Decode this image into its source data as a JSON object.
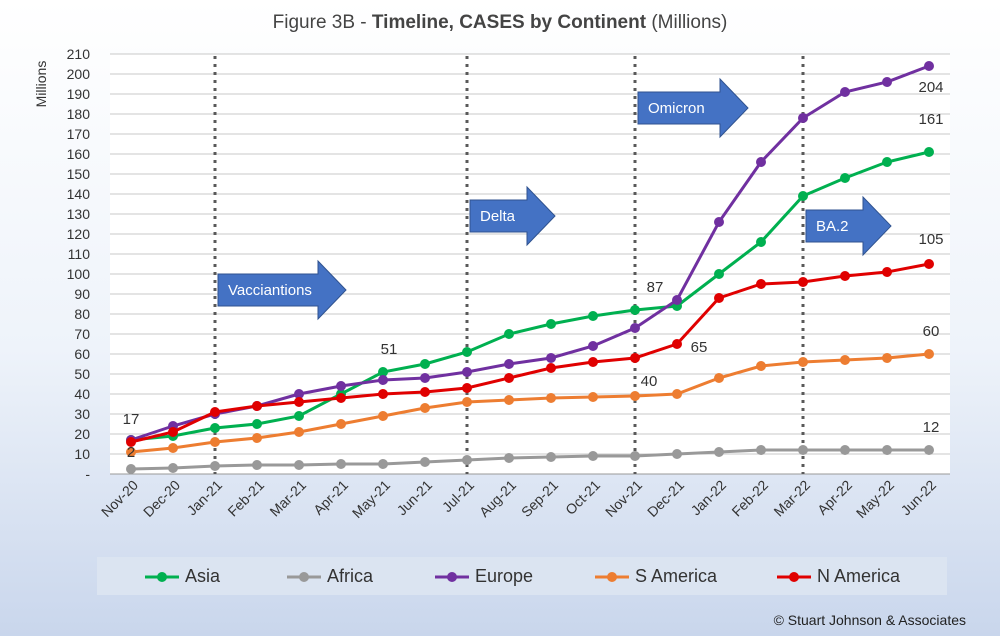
{
  "title": {
    "prefix": "Figure 3B - ",
    "bold": "Timeline, CASES by Continent",
    "suffix": " (Millions)"
  },
  "copyright": "© Stuart Johnson & Associates",
  "chart_data": {
    "type": "line",
    "ylabel": "Millions",
    "ylim": [
      0,
      210
    ],
    "yticks": [
      "-",
      "10",
      "20",
      "30",
      "40",
      "50",
      "60",
      "70",
      "80",
      "90",
      "100",
      "110",
      "120",
      "130",
      "140",
      "150",
      "160",
      "170",
      "180",
      "190",
      "200",
      "210"
    ],
    "categories": [
      "Nov-20",
      "Dec-20",
      "Jan-21",
      "Feb-21",
      "Mar-21",
      "Apr-21",
      "May-21",
      "Jun-21",
      "Jul-21",
      "Aug-21",
      "Sep-21",
      "Oct-21",
      "Nov-21",
      "Dec-21",
      "Jan-22",
      "Feb-22",
      "Mar-22",
      "Apr-22",
      "May-22",
      "Jun-22"
    ],
    "grid": true,
    "legend_position": "bottom",
    "series": [
      {
        "name": "Asia",
        "color": "#00b050",
        "values": [
          17,
          19,
          23,
          25,
          29,
          40,
          51,
          55,
          61,
          70,
          75,
          79,
          82,
          84,
          100,
          116,
          139,
          148,
          156,
          161
        ]
      },
      {
        "name": "Africa",
        "color": "#999999",
        "values": [
          2.5,
          3,
          4,
          4.5,
          4.5,
          5,
          5,
          6,
          7,
          8,
          8.5,
          9,
          9,
          10,
          11,
          12,
          12,
          12,
          12,
          12
        ]
      },
      {
        "name": "Europe",
        "color": "#7030a0",
        "values": [
          17,
          24,
          30,
          34,
          40,
          44,
          47,
          48,
          51,
          55,
          58,
          64,
          73,
          87,
          126,
          156,
          178,
          191,
          196,
          204
        ]
      },
      {
        "name": "S America",
        "color": "#ed7d31",
        "values": [
          11,
          13,
          16,
          18,
          21,
          25,
          29,
          33,
          36,
          37,
          38,
          38.5,
          39,
          40,
          48,
          54,
          56,
          57,
          58,
          60
        ]
      },
      {
        "name": "N America",
        "color": "#e00000",
        "values": [
          16,
          21,
          31,
          34,
          36,
          38,
          40,
          41,
          43,
          48,
          53,
          56,
          58,
          65,
          88,
          95,
          96,
          99,
          101,
          105
        ]
      }
    ],
    "data_labels": [
      {
        "text": "17",
        "series": "Europe",
        "category": "Nov-20"
      },
      {
        "text": "2",
        "series": "Africa",
        "category": "Nov-20"
      },
      {
        "text": "51",
        "series": "Asia",
        "category": "May-21"
      },
      {
        "text": "87",
        "series": "Europe",
        "category": "Dec-21"
      },
      {
        "text": "65",
        "series": "N America",
        "category": "Dec-21"
      },
      {
        "text": "40",
        "series": "S America",
        "category": "Dec-21"
      },
      {
        "text": "204",
        "series": "Europe",
        "category": "Jun-22"
      },
      {
        "text": "161",
        "series": "Asia",
        "category": "Jun-22"
      },
      {
        "text": "105",
        "series": "N America",
        "category": "Jun-22"
      },
      {
        "text": "60",
        "series": "S America",
        "category": "Jun-22"
      },
      {
        "text": "12",
        "series": "Africa",
        "category": "Jun-22"
      }
    ],
    "event_lines": [
      "Jan-21",
      "Jul-21",
      "Nov-21",
      "Mar-22"
    ],
    "annotations": [
      {
        "text": "Vacciantions",
        "category": "Jan-21",
        "value": 92
      },
      {
        "text": "Delta",
        "category": "Jul-21",
        "value": 129
      },
      {
        "text": "Omicron",
        "category": "Nov-21",
        "value": 183
      },
      {
        "text": "BA.2",
        "category": "Mar-22",
        "value": 124
      }
    ]
  }
}
